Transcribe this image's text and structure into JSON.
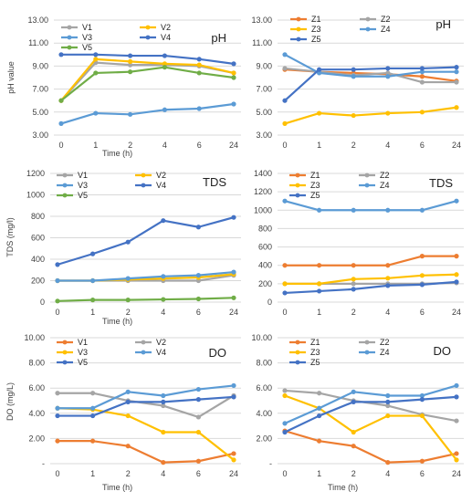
{
  "colors": {
    "orange": "#ED7D31",
    "gray": "#A5A5A5",
    "yellow": "#FFC000",
    "lightblue": "#5B9BD5",
    "darkblue": "#4472C4",
    "green": "#70AD47",
    "grid": "#D9D9D9"
  },
  "chart_data": [
    {
      "type": "line",
      "title": "pH",
      "xlabel": "Time (h)",
      "ylabel": "pH value",
      "categories": [
        "0",
        "1",
        "2",
        "4",
        "6",
        "24"
      ],
      "yticks": [
        "3.00",
        "5.00",
        "7.00",
        "9.00",
        "11.00",
        "13.00"
      ],
      "ylim": [
        3,
        13
      ],
      "grid": true,
      "legend": "top-left",
      "series": [
        {
          "name": "V1",
          "color": "gray",
          "values": [
            6.0,
            9.3,
            9.1,
            9.1,
            9.0,
            8.4
          ]
        },
        {
          "name": "V2",
          "color": "yellow",
          "values": [
            6.0,
            9.6,
            9.4,
            9.2,
            9.1,
            8.4
          ]
        },
        {
          "name": "V3",
          "color": "lightblue",
          "values": [
            4.0,
            4.9,
            4.8,
            5.2,
            5.3,
            5.7
          ]
        },
        {
          "name": "V4",
          "color": "darkblue",
          "values": [
            10.0,
            10.0,
            9.9,
            9.9,
            9.6,
            9.2
          ]
        },
        {
          "name": "V5",
          "color": "green",
          "values": [
            6.0,
            8.4,
            8.5,
            8.9,
            8.4,
            8.0
          ]
        }
      ]
    },
    {
      "type": "line",
      "title": "pH",
      "xlabel": "Time (h)",
      "ylabel": "",
      "categories": [
        "0",
        "1",
        "2",
        "4",
        "6",
        "24"
      ],
      "yticks": [
        "3.00",
        "5.00",
        "7.00",
        "9.00",
        "11.00",
        "13.00"
      ],
      "ylim": [
        3,
        13
      ],
      "grid": true,
      "legend": "top-left",
      "series": [
        {
          "name": "Z1",
          "color": "orange",
          "values": [
            8.7,
            8.5,
            8.4,
            8.3,
            8.1,
            7.7
          ]
        },
        {
          "name": "Z2",
          "color": "gray",
          "values": [
            8.8,
            8.5,
            8.2,
            8.4,
            7.6,
            7.6
          ]
        },
        {
          "name": "Z3",
          "color": "yellow",
          "values": [
            4.0,
            4.9,
            4.7,
            4.9,
            5.0,
            5.4
          ]
        },
        {
          "name": "Z4",
          "color": "lightblue",
          "values": [
            10.0,
            8.4,
            8.1,
            8.1,
            8.5,
            8.5
          ]
        },
        {
          "name": "Z5",
          "color": "darkblue",
          "values": [
            6.0,
            8.7,
            8.7,
            8.8,
            8.8,
            8.9
          ]
        }
      ]
    },
    {
      "type": "line",
      "title": "TDS",
      "xlabel": "Time (h)",
      "ylabel": "TDS (mg/l)",
      "categories": [
        "0",
        "1",
        "2",
        "4",
        "6",
        "24"
      ],
      "yticks": [
        "0",
        "200",
        "400",
        "600",
        "800",
        "1000",
        "1200"
      ],
      "ylim": [
        0,
        1200
      ],
      "grid": true,
      "legend": "top-left",
      "series": [
        {
          "name": "V1",
          "color": "gray",
          "values": [
            200,
            200,
            200,
            200,
            200,
            250
          ]
        },
        {
          "name": "V2",
          "color": "yellow",
          "values": [
            200,
            200,
            210,
            220,
            230,
            260
          ]
        },
        {
          "name": "V3",
          "color": "lightblue",
          "values": [
            200,
            200,
            220,
            240,
            250,
            280
          ]
        },
        {
          "name": "V4",
          "color": "darkblue",
          "values": [
            350,
            450,
            560,
            760,
            700,
            790
          ]
        },
        {
          "name": "V5",
          "color": "green",
          "values": [
            10,
            20,
            20,
            25,
            30,
            40
          ]
        }
      ]
    },
    {
      "type": "line",
      "title": "TDS",
      "xlabel": "Time (h)",
      "ylabel": "",
      "categories": [
        "0",
        "1",
        "2",
        "4",
        "6",
        "24"
      ],
      "yticks": [
        "0",
        "200",
        "400",
        "600",
        "800",
        "1000",
        "1200",
        "1400"
      ],
      "ylim": [
        0,
        1400
      ],
      "grid": true,
      "legend": "top-left",
      "series": [
        {
          "name": "Z1",
          "color": "orange",
          "values": [
            400,
            400,
            400,
            400,
            500,
            500
          ]
        },
        {
          "name": "Z2",
          "color": "gray",
          "values": [
            200,
            200,
            200,
            200,
            200,
            210
          ]
        },
        {
          "name": "Z3",
          "color": "yellow",
          "values": [
            200,
            200,
            250,
            260,
            290,
            300
          ]
        },
        {
          "name": "Z4",
          "color": "lightblue",
          "values": [
            1100,
            1000,
            1000,
            1000,
            1000,
            1100
          ]
        },
        {
          "name": "Z5",
          "color": "darkblue",
          "values": [
            100,
            120,
            140,
            180,
            190,
            220
          ]
        }
      ]
    },
    {
      "type": "line",
      "title": "DO",
      "xlabel": "Time (h)",
      "ylabel": "DO (mg/L)",
      "categories": [
        "0",
        "1",
        "2",
        "4",
        "6",
        "24"
      ],
      "yticks": [
        "-",
        "2.00",
        "4.00",
        "6.00",
        "8.00",
        "10.00"
      ],
      "ylim": [
        0,
        10
      ],
      "grid": true,
      "legend": "top-left",
      "series": [
        {
          "name": "V1",
          "color": "orange",
          "values": [
            1.8,
            1.8,
            1.4,
            0.1,
            0.2,
            0.8
          ]
        },
        {
          "name": "V2",
          "color": "gray",
          "values": [
            5.6,
            5.6,
            5.0,
            4.6,
            3.7,
            5.4
          ]
        },
        {
          "name": "V3",
          "color": "yellow",
          "values": [
            4.4,
            4.3,
            3.8,
            2.5,
            2.5,
            0.3
          ]
        },
        {
          "name": "V4",
          "color": "lightblue",
          "values": [
            4.4,
            4.4,
            5.7,
            5.4,
            5.9,
            6.2
          ]
        },
        {
          "name": "V5",
          "color": "darkblue",
          "values": [
            3.8,
            3.8,
            4.9,
            4.9,
            5.1,
            5.3
          ]
        }
      ]
    },
    {
      "type": "line",
      "title": "DO",
      "xlabel": "Time (h)",
      "ylabel": "",
      "categories": [
        "0",
        "1",
        "2",
        "4",
        "6",
        "24"
      ],
      "yticks": [
        "-",
        "2.00",
        "4.00",
        "6.00",
        "8.00",
        "10.00"
      ],
      "ylim": [
        0,
        10
      ],
      "grid": true,
      "legend": "top-left",
      "series": [
        {
          "name": "Z1",
          "color": "orange",
          "values": [
            2.6,
            1.8,
            1.4,
            0.1,
            0.2,
            0.8
          ]
        },
        {
          "name": "Z2",
          "color": "gray",
          "values": [
            5.8,
            5.6,
            5.0,
            4.6,
            3.9,
            3.4
          ]
        },
        {
          "name": "Z3",
          "color": "yellow",
          "values": [
            5.4,
            4.4,
            2.5,
            3.8,
            3.8,
            0.3
          ]
        },
        {
          "name": "Z4",
          "color": "lightblue",
          "values": [
            3.2,
            4.4,
            5.7,
            5.4,
            5.4,
            6.2
          ]
        },
        {
          "name": "Z5",
          "color": "darkblue",
          "values": [
            2.5,
            3.8,
            4.9,
            4.9,
            5.1,
            5.3
          ]
        }
      ]
    }
  ]
}
